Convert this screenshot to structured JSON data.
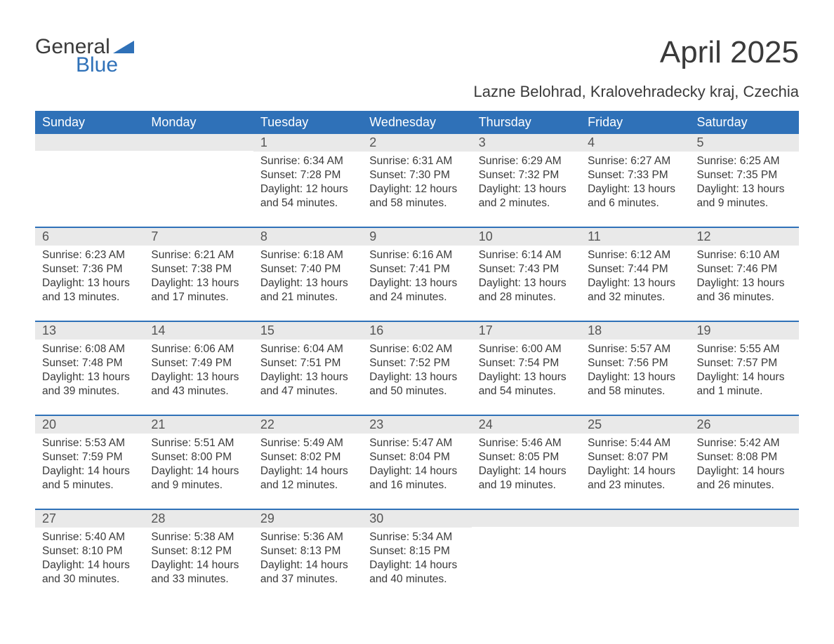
{
  "logo": {
    "text1": "General",
    "text2": "Blue",
    "color_general": "#3a3a3a",
    "color_blue": "#2f71b8",
    "shape_color": "#2f71b8"
  },
  "title": "April 2025",
  "subtitle": "Lazne Belohrad, Kralovehradecky kraj, Czechia",
  "colors": {
    "header_bg": "#2f71b8",
    "header_text": "#ffffff",
    "daterow_bg": "#e9e9e9",
    "text": "#3a3a3a",
    "rule": "#2f71b8"
  },
  "dayheaders": [
    "Sunday",
    "Monday",
    "Tuesday",
    "Wednesday",
    "Thursday",
    "Friday",
    "Saturday"
  ],
  "weeks": [
    [
      {
        "date": "",
        "sunrise": "",
        "sunset": "",
        "daylight": ""
      },
      {
        "date": "",
        "sunrise": "",
        "sunset": "",
        "daylight": ""
      },
      {
        "date": "1",
        "sunrise": "Sunrise: 6:34 AM",
        "sunset": "Sunset: 7:28 PM",
        "daylight": "Daylight: 12 hours and 54 minutes."
      },
      {
        "date": "2",
        "sunrise": "Sunrise: 6:31 AM",
        "sunset": "Sunset: 7:30 PM",
        "daylight": "Daylight: 12 hours and 58 minutes."
      },
      {
        "date": "3",
        "sunrise": "Sunrise: 6:29 AM",
        "sunset": "Sunset: 7:32 PM",
        "daylight": "Daylight: 13 hours and 2 minutes."
      },
      {
        "date": "4",
        "sunrise": "Sunrise: 6:27 AM",
        "sunset": "Sunset: 7:33 PM",
        "daylight": "Daylight: 13 hours and 6 minutes."
      },
      {
        "date": "5",
        "sunrise": "Sunrise: 6:25 AM",
        "sunset": "Sunset: 7:35 PM",
        "daylight": "Daylight: 13 hours and 9 minutes."
      }
    ],
    [
      {
        "date": "6",
        "sunrise": "Sunrise: 6:23 AM",
        "sunset": "Sunset: 7:36 PM",
        "daylight": "Daylight: 13 hours and 13 minutes."
      },
      {
        "date": "7",
        "sunrise": "Sunrise: 6:21 AM",
        "sunset": "Sunset: 7:38 PM",
        "daylight": "Daylight: 13 hours and 17 minutes."
      },
      {
        "date": "8",
        "sunrise": "Sunrise: 6:18 AM",
        "sunset": "Sunset: 7:40 PM",
        "daylight": "Daylight: 13 hours and 21 minutes."
      },
      {
        "date": "9",
        "sunrise": "Sunrise: 6:16 AM",
        "sunset": "Sunset: 7:41 PM",
        "daylight": "Daylight: 13 hours and 24 minutes."
      },
      {
        "date": "10",
        "sunrise": "Sunrise: 6:14 AM",
        "sunset": "Sunset: 7:43 PM",
        "daylight": "Daylight: 13 hours and 28 minutes."
      },
      {
        "date": "11",
        "sunrise": "Sunrise: 6:12 AM",
        "sunset": "Sunset: 7:44 PM",
        "daylight": "Daylight: 13 hours and 32 minutes."
      },
      {
        "date": "12",
        "sunrise": "Sunrise: 6:10 AM",
        "sunset": "Sunset: 7:46 PM",
        "daylight": "Daylight: 13 hours and 36 minutes."
      }
    ],
    [
      {
        "date": "13",
        "sunrise": "Sunrise: 6:08 AM",
        "sunset": "Sunset: 7:48 PM",
        "daylight": "Daylight: 13 hours and 39 minutes."
      },
      {
        "date": "14",
        "sunrise": "Sunrise: 6:06 AM",
        "sunset": "Sunset: 7:49 PM",
        "daylight": "Daylight: 13 hours and 43 minutes."
      },
      {
        "date": "15",
        "sunrise": "Sunrise: 6:04 AM",
        "sunset": "Sunset: 7:51 PM",
        "daylight": "Daylight: 13 hours and 47 minutes."
      },
      {
        "date": "16",
        "sunrise": "Sunrise: 6:02 AM",
        "sunset": "Sunset: 7:52 PM",
        "daylight": "Daylight: 13 hours and 50 minutes."
      },
      {
        "date": "17",
        "sunrise": "Sunrise: 6:00 AM",
        "sunset": "Sunset: 7:54 PM",
        "daylight": "Daylight: 13 hours and 54 minutes."
      },
      {
        "date": "18",
        "sunrise": "Sunrise: 5:57 AM",
        "sunset": "Sunset: 7:56 PM",
        "daylight": "Daylight: 13 hours and 58 minutes."
      },
      {
        "date": "19",
        "sunrise": "Sunrise: 5:55 AM",
        "sunset": "Sunset: 7:57 PM",
        "daylight": "Daylight: 14 hours and 1 minute."
      }
    ],
    [
      {
        "date": "20",
        "sunrise": "Sunrise: 5:53 AM",
        "sunset": "Sunset: 7:59 PM",
        "daylight": "Daylight: 14 hours and 5 minutes."
      },
      {
        "date": "21",
        "sunrise": "Sunrise: 5:51 AM",
        "sunset": "Sunset: 8:00 PM",
        "daylight": "Daylight: 14 hours and 9 minutes."
      },
      {
        "date": "22",
        "sunrise": "Sunrise: 5:49 AM",
        "sunset": "Sunset: 8:02 PM",
        "daylight": "Daylight: 14 hours and 12 minutes."
      },
      {
        "date": "23",
        "sunrise": "Sunrise: 5:47 AM",
        "sunset": "Sunset: 8:04 PM",
        "daylight": "Daylight: 14 hours and 16 minutes."
      },
      {
        "date": "24",
        "sunrise": "Sunrise: 5:46 AM",
        "sunset": "Sunset: 8:05 PM",
        "daylight": "Daylight: 14 hours and 19 minutes."
      },
      {
        "date": "25",
        "sunrise": "Sunrise: 5:44 AM",
        "sunset": "Sunset: 8:07 PM",
        "daylight": "Daylight: 14 hours and 23 minutes."
      },
      {
        "date": "26",
        "sunrise": "Sunrise: 5:42 AM",
        "sunset": "Sunset: 8:08 PM",
        "daylight": "Daylight: 14 hours and 26 minutes."
      }
    ],
    [
      {
        "date": "27",
        "sunrise": "Sunrise: 5:40 AM",
        "sunset": "Sunset: 8:10 PM",
        "daylight": "Daylight: 14 hours and 30 minutes."
      },
      {
        "date": "28",
        "sunrise": "Sunrise: 5:38 AM",
        "sunset": "Sunset: 8:12 PM",
        "daylight": "Daylight: 14 hours and 33 minutes."
      },
      {
        "date": "29",
        "sunrise": "Sunrise: 5:36 AM",
        "sunset": "Sunset: 8:13 PM",
        "daylight": "Daylight: 14 hours and 37 minutes."
      },
      {
        "date": "30",
        "sunrise": "Sunrise: 5:34 AM",
        "sunset": "Sunset: 8:15 PM",
        "daylight": "Daylight: 14 hours and 40 minutes."
      },
      {
        "date": "",
        "sunrise": "",
        "sunset": "",
        "daylight": ""
      },
      {
        "date": "",
        "sunrise": "",
        "sunset": "",
        "daylight": ""
      },
      {
        "date": "",
        "sunrise": "",
        "sunset": "",
        "daylight": ""
      }
    ]
  ]
}
